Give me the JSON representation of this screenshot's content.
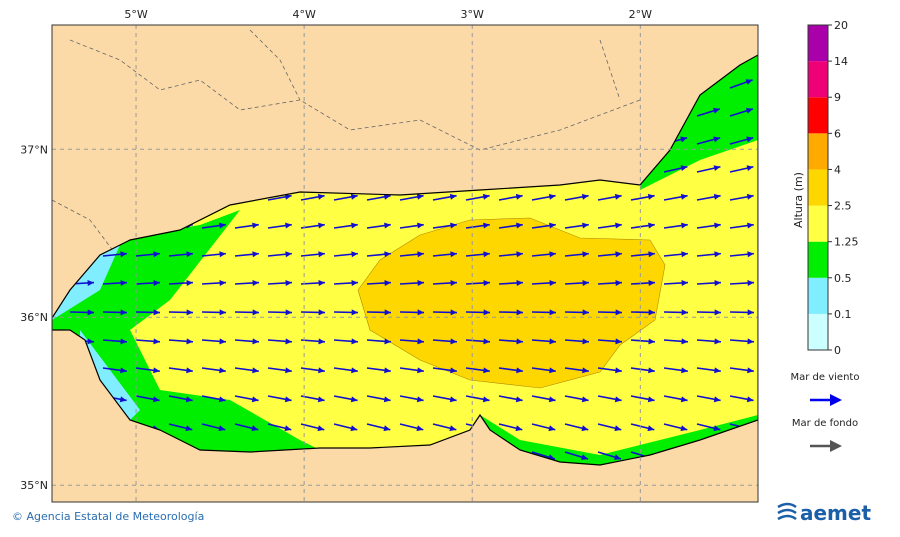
{
  "map": {
    "xlim": [
      -5.5,
      -1.3
    ],
    "ylim": [
      34.9,
      37.74
    ],
    "xticks": [
      {
        "value": -5,
        "label": "5°W"
      },
      {
        "value": -4,
        "label": "4°W"
      },
      {
        "value": -3,
        "label": "3°W"
      },
      {
        "value": -2,
        "label": "2°W"
      }
    ],
    "yticks": [
      {
        "value": 35,
        "label": "35°N"
      },
      {
        "value": 36,
        "label": "36°N"
      },
      {
        "value": 37,
        "label": "37°N"
      }
    ],
    "colorbar": {
      "label": "Altura (m)",
      "ticks": [
        0,
        0.1,
        0.5,
        1.25,
        2.5,
        4,
        6,
        9,
        14,
        20
      ],
      "colors": [
        "#ccffff",
        "#80eeff",
        "#00ee00",
        "#ffff44",
        "#ffd700",
        "#ffaa00",
        "#ff0000",
        "#ee0077",
        "#aa00aa"
      ]
    },
    "legend": [
      {
        "label": "Mar de viento",
        "color": "#0000ee"
      },
      {
        "label": "Mar de fondo",
        "color": "#555555"
      }
    ]
  },
  "footer": {
    "credit": "© Agencia Estatal de Meteorología",
    "logo": "aemet"
  }
}
